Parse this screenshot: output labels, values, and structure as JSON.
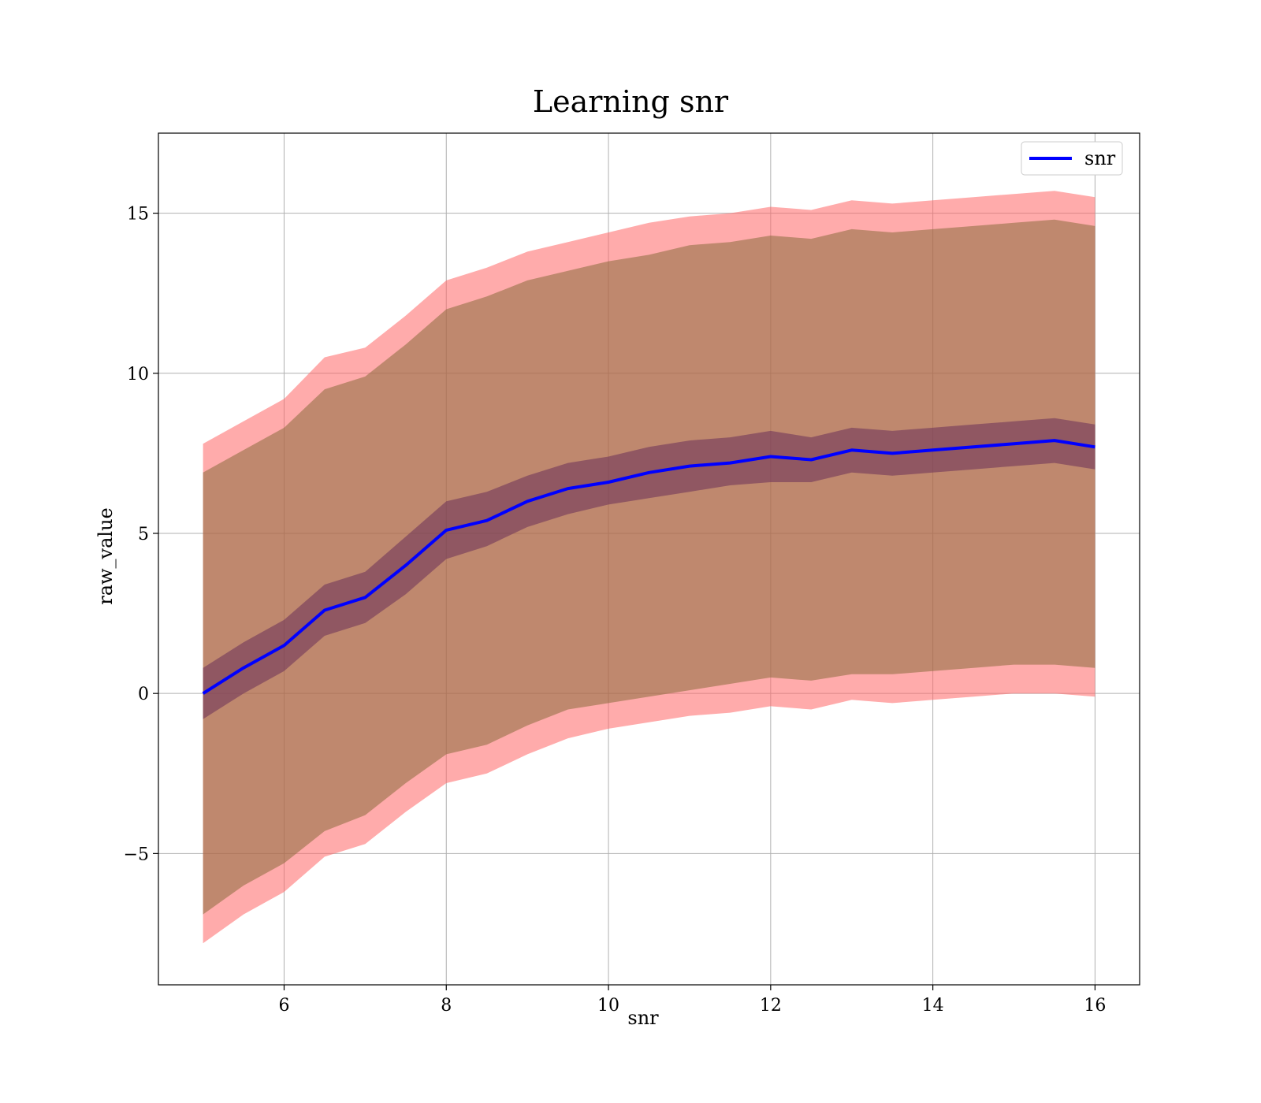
{
  "chart_data": {
    "type": "area",
    "title": "Learning snr",
    "xlabel": "snr",
    "ylabel": "raw_value",
    "xlim": [
      4.45,
      16.55
    ],
    "ylim": [
      -9.1,
      17.5
    ],
    "xticks": [
      6,
      8,
      10,
      12,
      14,
      16
    ],
    "xtick_labels": [
      "6",
      "8",
      "10",
      "12",
      "14",
      "16"
    ],
    "yticks": [
      -5,
      0,
      5,
      10,
      15
    ],
    "ytick_labels": [
      "−5",
      "0",
      "5",
      "10",
      "15"
    ],
    "grid": true,
    "legend": {
      "position": "top-right",
      "entries": [
        {
          "label": "snr",
          "color": "#0000ff"
        }
      ]
    },
    "colors": {
      "outer_band": "#ff6666",
      "middle_band": "#8b6b3d",
      "inner_band": "#6a2f5a",
      "line": "#0000ff"
    },
    "x": [
      5.0,
      5.5,
      6.0,
      6.5,
      7.0,
      7.5,
      8.0,
      8.5,
      9.0,
      9.5,
      10.0,
      10.5,
      11.0,
      11.5,
      12.0,
      12.5,
      13.0,
      13.5,
      14.0,
      14.5,
      15.0,
      15.5,
      16.0
    ],
    "series": [
      {
        "name": "snr",
        "role": "line",
        "values": [
          0.0,
          0.8,
          1.5,
          2.6,
          3.0,
          4.0,
          5.1,
          5.4,
          6.0,
          6.4,
          6.6,
          6.9,
          7.1,
          7.2,
          7.4,
          7.3,
          7.6,
          7.5,
          7.6,
          7.7,
          7.8,
          7.9,
          7.7
        ]
      },
      {
        "role": "inner_band",
        "lower": [
          -0.8,
          0.0,
          0.7,
          1.8,
          2.2,
          3.1,
          4.2,
          4.6,
          5.2,
          5.6,
          5.9,
          6.1,
          6.3,
          6.5,
          6.6,
          6.6,
          6.9,
          6.8,
          6.9,
          7.0,
          7.1,
          7.2,
          7.0
        ],
        "upper": [
          0.8,
          1.6,
          2.3,
          3.4,
          3.8,
          4.9,
          6.0,
          6.3,
          6.8,
          7.2,
          7.4,
          7.7,
          7.9,
          8.0,
          8.2,
          8.0,
          8.3,
          8.2,
          8.3,
          8.4,
          8.5,
          8.6,
          8.4
        ]
      },
      {
        "role": "middle_band",
        "lower": [
          -6.9,
          -6.0,
          -5.3,
          -4.3,
          -3.8,
          -2.8,
          -1.9,
          -1.6,
          -1.0,
          -0.5,
          -0.3,
          -0.1,
          0.1,
          0.3,
          0.5,
          0.4,
          0.6,
          0.6,
          0.7,
          0.8,
          0.9,
          0.9,
          0.8
        ],
        "upper": [
          6.9,
          7.6,
          8.3,
          9.5,
          9.9,
          10.9,
          12.0,
          12.4,
          12.9,
          13.2,
          13.5,
          13.7,
          14.0,
          14.1,
          14.3,
          14.2,
          14.5,
          14.4,
          14.5,
          14.6,
          14.7,
          14.8,
          14.6
        ]
      },
      {
        "role": "outer_band",
        "lower": [
          -7.8,
          -6.9,
          -6.2,
          -5.1,
          -4.7,
          -3.7,
          -2.8,
          -2.5,
          -1.9,
          -1.4,
          -1.1,
          -0.9,
          -0.7,
          -0.6,
          -0.4,
          -0.5,
          -0.2,
          -0.3,
          -0.2,
          -0.1,
          0.0,
          0.0,
          -0.1
        ],
        "upper": [
          7.8,
          8.5,
          9.2,
          10.5,
          10.8,
          11.8,
          12.9,
          13.3,
          13.8,
          14.1,
          14.4,
          14.7,
          14.9,
          15.0,
          15.2,
          15.1,
          15.4,
          15.3,
          15.4,
          15.5,
          15.6,
          15.7,
          15.5
        ]
      }
    ]
  }
}
